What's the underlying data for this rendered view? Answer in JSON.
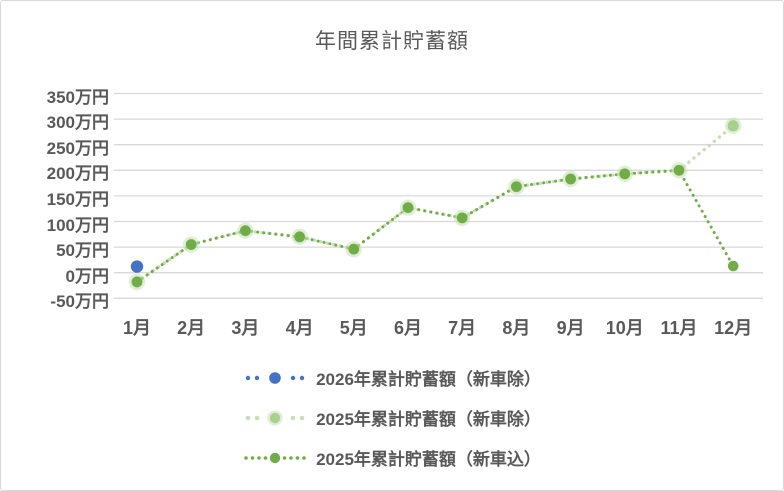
{
  "title": "年間累計貯蓄額",
  "chart_data": {
    "type": "line",
    "title": "年間累計貯蓄額",
    "categories": [
      "1月",
      "2月",
      "3月",
      "4月",
      "5月",
      "6月",
      "7月",
      "8月",
      "9月",
      "10月",
      "11月",
      "12月"
    ],
    "series": [
      {
        "name": "2026年累計貯蓄額（新車除）",
        "line_color": "#4472c4",
        "marker_color": "#4472c4",
        "values": [
          12,
          null,
          null,
          null,
          null,
          null,
          null,
          null,
          null,
          null,
          null,
          null
        ]
      },
      {
        "name": "2025年累計貯蓄額（新車除）",
        "line_color": "#c6e0b4",
        "marker_color": "#a9d18e",
        "values": [
          -18,
          55,
          82,
          70,
          46,
          127,
          107,
          168,
          183,
          193,
          200,
          287
        ]
      },
      {
        "name": "2025年累計貯蓄額（新車込）",
        "line_color": "#70ad47",
        "marker_color": "#70ad47",
        "values": [
          -18,
          55,
          82,
          70,
          46,
          127,
          107,
          168,
          183,
          193,
          200,
          13
        ]
      }
    ],
    "yticks": [
      350,
      300,
      250,
      200,
      150,
      100,
      50,
      0,
      -50
    ],
    "ytick_labels": [
      "350万円",
      "300万円",
      "250万円",
      "200万円",
      "150万円",
      "100万円",
      "50万円",
      "0万円",
      "-50万円"
    ],
    "ylim": [
      -50,
      350
    ],
    "unit": "万円",
    "grid": true,
    "legend_position": "bottom",
    "grid_color": "#d9d9d9",
    "text_color": "#595959",
    "background": "#ffffff"
  }
}
